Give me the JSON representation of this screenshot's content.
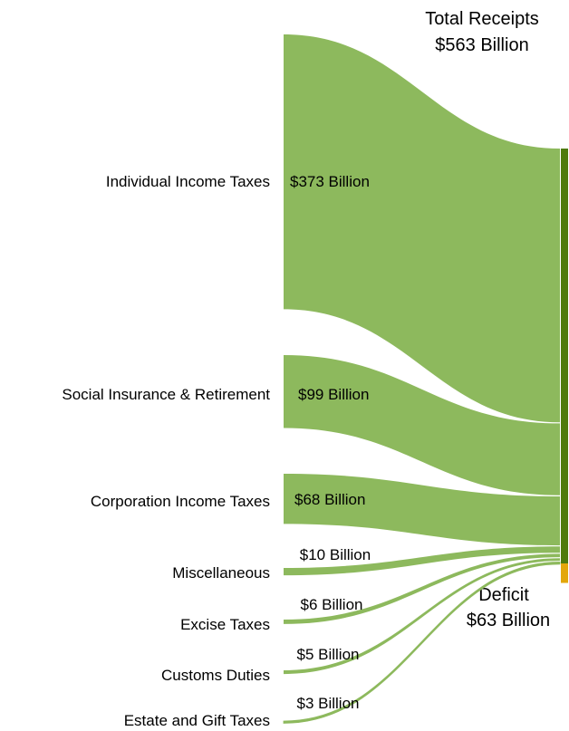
{
  "chart_data": {
    "type": "sankey",
    "title_line1": "Total Receipts",
    "title_line2": "$563 Billion",
    "deficit_line1": "Deficit",
    "deficit_line2": "$63 Billion",
    "total": 563,
    "deficit": 63,
    "colors": {
      "flow": "#8db95d",
      "bar": "#4e7a0c",
      "deficit_bar": "#e3a70a"
    },
    "sources": [
      {
        "name": "Individual Income Taxes",
        "value": 373,
        "value_label": "$373 Billion"
      },
      {
        "name": "Social Insurance & Retirement",
        "value": 99,
        "value_label": "$99 Billion"
      },
      {
        "name": "Corporation Income Taxes",
        "value": 68,
        "value_label": "$68 Billion"
      },
      {
        "name": "Miscellaneous",
        "value": 10,
        "value_label": "$10 Billion"
      },
      {
        "name": "Excise Taxes",
        "value": 6,
        "value_label": "$6 Billion"
      },
      {
        "name": "Customs Duties",
        "value": 5,
        "value_label": "$5 Billion"
      },
      {
        "name": "Estate and Gift Taxes",
        "value": 3,
        "value_label": "$3 Billion"
      }
    ]
  }
}
